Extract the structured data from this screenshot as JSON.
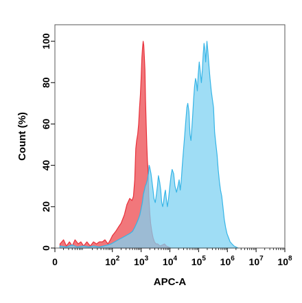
{
  "chart_data": {
    "type": "area",
    "xlabel": "APC-A",
    "ylabel": "Count  (%)",
    "x_scale": "log",
    "xlim": [
      1,
      100000000
    ],
    "ylim": [
      0,
      108
    ],
    "x_ticks": [
      {
        "value": 1,
        "label": "0",
        "exp": ""
      },
      {
        "value": 100,
        "label": "10",
        "exp": "2"
      },
      {
        "value": 1000,
        "label": "10",
        "exp": "3"
      },
      {
        "value": 10000,
        "label": "10",
        "exp": "4"
      },
      {
        "value": 100000,
        "label": "10",
        "exp": "5"
      },
      {
        "value": 1000000,
        "label": "10",
        "exp": "6"
      },
      {
        "value": 10000000,
        "label": "10",
        "exp": "7"
      },
      {
        "value": 100000000,
        "label": "10",
        "exp": "8"
      }
    ],
    "y_ticks": [
      0,
      20,
      40,
      60,
      80,
      100
    ],
    "grid": false,
    "series": [
      {
        "color": "#e8303a",
        "fill": "#f07074",
        "points": [
          [
            1.5,
            2
          ],
          [
            2.0,
            4
          ],
          [
            2.5,
            1
          ],
          [
            3.2,
            3
          ],
          [
            4.0,
            1
          ],
          [
            5.0,
            4
          ],
          [
            6.5,
            2
          ],
          [
            8.0,
            3
          ],
          [
            10,
            1
          ],
          [
            13,
            3
          ],
          [
            17,
            1
          ],
          [
            22,
            3
          ],
          [
            28,
            2
          ],
          [
            35,
            3
          ],
          [
            45,
            3
          ],
          [
            55,
            4
          ],
          [
            70,
            2
          ],
          [
            85,
            4
          ],
          [
            100,
            6
          ],
          [
            130,
            8
          ],
          [
            160,
            10
          ],
          [
            200,
            12
          ],
          [
            260,
            16
          ],
          [
            320,
            21
          ],
          [
            400,
            24
          ],
          [
            480,
            23
          ],
          [
            540,
            25
          ],
          [
            600,
            33
          ],
          [
            650,
            48
          ],
          [
            700,
            52
          ],
          [
            760,
            55
          ],
          [
            820,
            60
          ],
          [
            880,
            68
          ],
          [
            940,
            74
          ],
          [
            1000,
            82
          ],
          [
            1060,
            92
          ],
          [
            1120,
            97
          ],
          [
            1180,
            100
          ],
          [
            1240,
            98
          ],
          [
            1300,
            92
          ],
          [
            1360,
            86
          ],
          [
            1420,
            72
          ],
          [
            1500,
            60
          ],
          [
            1580,
            50
          ],
          [
            1660,
            42
          ],
          [
            1740,
            38
          ],
          [
            1850,
            25
          ],
          [
            2000,
            17
          ],
          [
            2150,
            12
          ],
          [
            2350,
            8
          ],
          [
            2600,
            5
          ],
          [
            2900,
            3
          ],
          [
            3300,
            2
          ],
          [
            3800,
            2
          ],
          [
            4500,
            1
          ],
          [
            5500,
            1.5
          ],
          [
            6500,
            2
          ],
          [
            7500,
            1
          ],
          [
            9000,
            0.5
          ],
          [
            11000,
            0
          ]
        ]
      },
      {
        "color": "#35b4e6",
        "fill": "#7fd2f2",
        "points": [
          [
            1.5,
            1
          ],
          [
            2.5,
            0.5
          ],
          [
            4,
            1.5
          ],
          [
            6,
            0.5
          ],
          [
            10,
            1
          ],
          [
            15,
            0.5
          ],
          [
            22,
            1
          ],
          [
            35,
            0.5
          ],
          [
            50,
            1
          ],
          [
            70,
            1.5
          ],
          [
            90,
            2
          ],
          [
            120,
            3
          ],
          [
            160,
            4
          ],
          [
            220,
            5
          ],
          [
            300,
            6
          ],
          [
            400,
            7
          ],
          [
            500,
            8
          ],
          [
            600,
            10
          ],
          [
            700,
            12
          ],
          [
            800,
            14
          ],
          [
            900,
            16
          ],
          [
            1000,
            19
          ],
          [
            1100,
            22
          ],
          [
            1200,
            26
          ],
          [
            1300,
            28
          ],
          [
            1400,
            30
          ],
          [
            1500,
            31
          ],
          [
            1650,
            33
          ],
          [
            1800,
            36
          ],
          [
            1900,
            40
          ],
          [
            2000,
            39
          ],
          [
            2200,
            36
          ],
          [
            2400,
            32
          ],
          [
            2600,
            28
          ],
          [
            2800,
            24
          ],
          [
            3100,
            22
          ],
          [
            3400,
            26
          ],
          [
            3700,
            30
          ],
          [
            4000,
            35
          ],
          [
            4400,
            32
          ],
          [
            4800,
            28
          ],
          [
            5200,
            22
          ],
          [
            5600,
            20
          ],
          [
            6000,
            22
          ],
          [
            6500,
            26
          ],
          [
            7000,
            28
          ],
          [
            7500,
            24
          ],
          [
            8200,
            20
          ],
          [
            9000,
            24
          ],
          [
            10000,
            30
          ],
          [
            11000,
            35
          ],
          [
            12000,
            38
          ],
          [
            13500,
            36
          ],
          [
            15000,
            30
          ],
          [
            17000,
            27
          ],
          [
            19000,
            30
          ],
          [
            21000,
            33
          ],
          [
            23000,
            28
          ],
          [
            25000,
            33
          ],
          [
            27000,
            40
          ],
          [
            30000,
            48
          ],
          [
            33000,
            55
          ],
          [
            36000,
            62
          ],
          [
            39000,
            68
          ],
          [
            42000,
            70
          ],
          [
            46000,
            66
          ],
          [
            50000,
            55
          ],
          [
            54000,
            52
          ],
          [
            58000,
            58
          ],
          [
            62000,
            64
          ],
          [
            67000,
            72
          ],
          [
            72000,
            78
          ],
          [
            78000,
            82
          ],
          [
            84000,
            80
          ],
          [
            90000,
            76
          ],
          [
            97000,
            84
          ],
          [
            105000,
            90
          ],
          [
            115000,
            85
          ],
          [
            125000,
            80
          ],
          [
            135000,
            86
          ],
          [
            145000,
            94
          ],
          [
            155000,
            99
          ],
          [
            165000,
            96
          ],
          [
            175000,
            90
          ],
          [
            185000,
            95
          ],
          [
            195000,
            100
          ],
          [
            210000,
            95
          ],
          [
            230000,
            88
          ],
          [
            250000,
            82
          ],
          [
            275000,
            76
          ],
          [
            300000,
            72
          ],
          [
            330000,
            68
          ],
          [
            360000,
            56
          ],
          [
            400000,
            50
          ],
          [
            440000,
            45
          ],
          [
            480000,
            38
          ],
          [
            530000,
            32
          ],
          [
            580000,
            28
          ],
          [
            640000,
            25
          ],
          [
            700000,
            20
          ],
          [
            780000,
            14
          ],
          [
            870000,
            10
          ],
          [
            970000,
            7
          ],
          [
            1100000,
            5
          ],
          [
            1250000,
            3
          ],
          [
            1450000,
            2
          ],
          [
            1700000,
            1
          ],
          [
            2000000,
            0.5
          ],
          [
            2400000,
            0
          ]
        ]
      }
    ]
  }
}
